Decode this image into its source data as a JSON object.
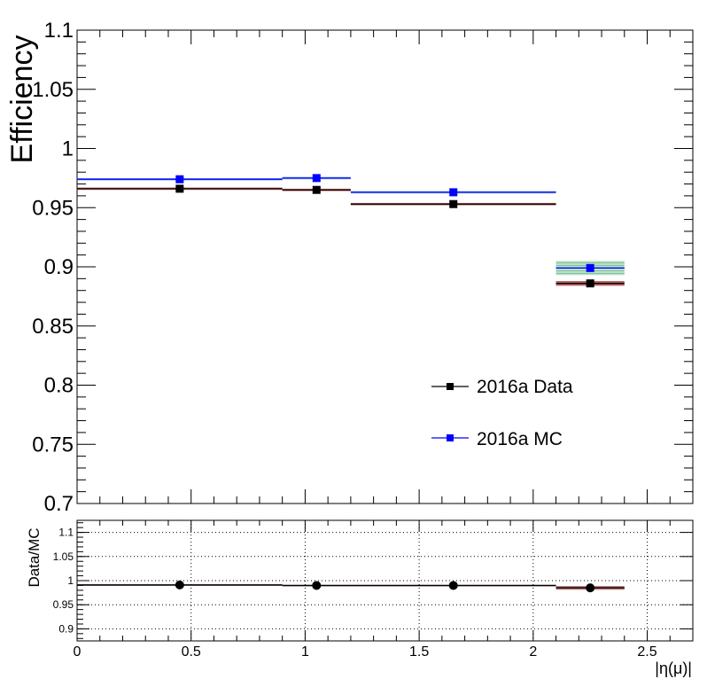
{
  "chart_data": [
    {
      "type": "scatter",
      "panel": "main",
      "ylabel": "Efficiency",
      "xlim": [
        0,
        2.7
      ],
      "ylim": [
        0.7,
        1.1
      ],
      "y_tick_labels": [
        "0.7",
        "0.75",
        "0.8",
        "0.85",
        "0.9",
        "0.95",
        "1",
        "1.05",
        "1.1"
      ],
      "series": [
        {
          "name": "2016a Data",
          "color": "#000000",
          "band_color": "#a03030",
          "marker": "square",
          "points": [
            {
              "x": 0.45,
              "xlow": 0.0,
              "xhigh": 0.9,
              "y": 0.966,
              "err": 0.001
            },
            {
              "x": 1.05,
              "xlow": 0.9,
              "xhigh": 1.2,
              "y": 0.965,
              "err": 0.001
            },
            {
              "x": 1.65,
              "xlow": 1.2,
              "xhigh": 2.1,
              "y": 0.953,
              "err": 0.001
            },
            {
              "x": 2.25,
              "xlow": 2.1,
              "xhigh": 2.4,
              "y": 0.886,
              "err": 0.002
            }
          ]
        },
        {
          "name": "2016a MC",
          "color": "#0000ff",
          "band_color": "#6699cc",
          "marker": "square",
          "points": [
            {
              "x": 0.45,
              "xlow": 0.0,
              "xhigh": 0.9,
              "y": 0.974,
              "err": 0.001
            },
            {
              "x": 1.05,
              "xlow": 0.9,
              "xhigh": 1.2,
              "y": 0.975,
              "err": 0.001
            },
            {
              "x": 1.65,
              "xlow": 1.2,
              "xhigh": 2.1,
              "y": 0.963,
              "err": 0.001
            },
            {
              "x": 2.25,
              "xlow": 2.1,
              "xhigh": 2.4,
              "y": 0.899,
              "err": 0.006
            }
          ]
        }
      ],
      "legend_placement": "bottom-right"
    },
    {
      "type": "scatter",
      "panel": "ratio",
      "ylabel": "Data/MC",
      "xlabel": "|η(μ)|",
      "xlim": [
        0,
        2.7
      ],
      "ylim": [
        0.875,
        1.125
      ],
      "grid": true,
      "x_tick_labels": [
        "0",
        "0.5",
        "1",
        "1.5",
        "2",
        "2.5"
      ],
      "y_tick_labels": [
        "0.9",
        "0.95",
        "1",
        "1.05",
        "1.1"
      ],
      "series": [
        {
          "name": "",
          "color": "#000000",
          "band_color": "#a03030",
          "marker": "circle",
          "points": [
            {
              "x": 0.45,
              "xlow": 0.0,
              "xhigh": 0.9,
              "y": 0.991,
              "err": 0.001
            },
            {
              "x": 1.05,
              "xlow": 0.9,
              "xhigh": 1.2,
              "y": 0.99,
              "err": 0.001
            },
            {
              "x": 1.65,
              "xlow": 1.2,
              "xhigh": 2.1,
              "y": 0.99,
              "err": 0.001
            },
            {
              "x": 2.25,
              "xlow": 2.1,
              "xhigh": 2.4,
              "y": 0.985,
              "err": 0.004
            }
          ]
        }
      ]
    }
  ]
}
